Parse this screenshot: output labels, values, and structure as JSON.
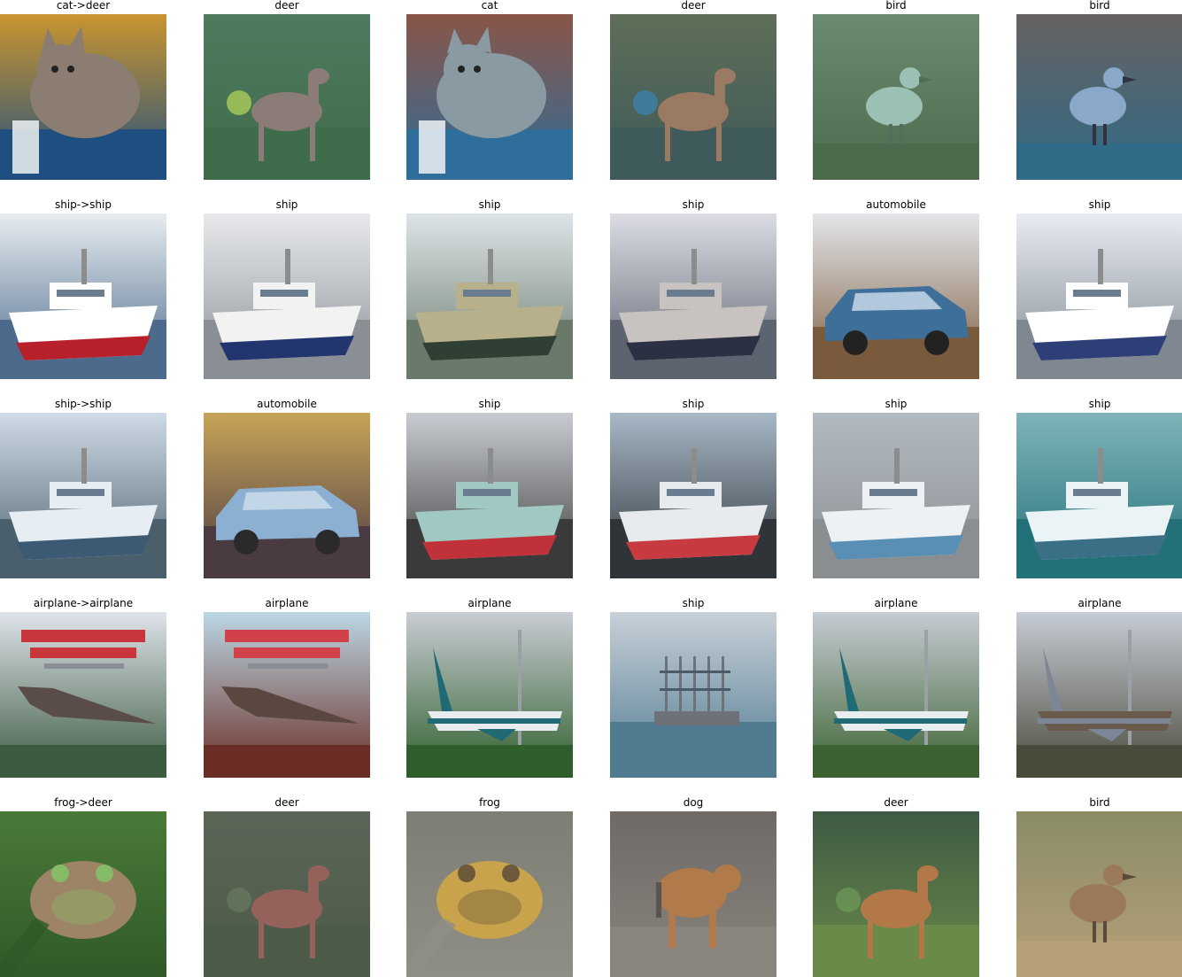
{
  "figure": {
    "rows": [
      {
        "cells": [
          {
            "title": "cat->deer",
            "subject": "cat",
            "colors": {
              "bg": "#c9952f",
              "fg": "#8c7d72",
              "accent": "#2f6fa8",
              "floor": "#1f4f80"
            }
          },
          {
            "title": "deer",
            "subject": "deer",
            "colors": {
              "bg": "#4f7a5e",
              "fg": "#8b7c78",
              "accent": "#b8d85a",
              "floor": "#3f6c4a"
            }
          },
          {
            "title": "cat",
            "subject": "cat",
            "colors": {
              "bg": "#8a5547",
              "fg": "#8a9aa2",
              "accent": "#3d7fae",
              "floor": "#2f6e9a"
            }
          },
          {
            "title": "deer",
            "subject": "deer",
            "colors": {
              "bg": "#5e6e58",
              "fg": "#9a7a63",
              "accent": "#3a86b6",
              "floor": "#3f5a5a"
            }
          },
          {
            "title": "bird",
            "subject": "bird",
            "colors": {
              "bg": "#6c8a70",
              "fg": "#9cc0b4",
              "accent": "#4f6f58",
              "floor": "#4c6a4c"
            }
          },
          {
            "title": "bird",
            "subject": "bird",
            "colors": {
              "bg": "#676262",
              "fg": "#8aa8c8",
              "accent": "#2f3440",
              "floor": "#2f6a86"
            }
          }
        ]
      },
      {
        "cells": [
          {
            "title": "ship->ship",
            "subject": "ship",
            "colors": {
              "bg": "#e7ecef",
              "fg": "#ffffff",
              "accent": "#b8202c",
              "floor": "#4b6a8c"
            }
          },
          {
            "title": "ship",
            "subject": "ship",
            "colors": {
              "bg": "#e8eaed",
              "fg": "#f2f2f2",
              "accent": "#22356e",
              "floor": "#8a8f95"
            }
          },
          {
            "title": "ship",
            "subject": "ship",
            "colors": {
              "bg": "#dde4e8",
              "fg": "#b8b08a",
              "accent": "#2f3f33",
              "floor": "#6a7a6a"
            }
          },
          {
            "title": "ship",
            "subject": "ship",
            "colors": {
              "bg": "#dcdde4",
              "fg": "#c8c3c0",
              "accent": "#2b3043",
              "floor": "#5d6470"
            }
          },
          {
            "title": "automobile",
            "subject": "car",
            "colors": {
              "bg": "#e4e6ea",
              "fg": "#3d6f99",
              "accent": "#222222",
              "floor": "#7a5a3c"
            }
          },
          {
            "title": "ship",
            "subject": "ship",
            "colors": {
              "bg": "#e8ecf3",
              "fg": "#ffffff",
              "accent": "#2e3f78",
              "floor": "#7f8790"
            }
          }
        ]
      },
      {
        "cells": [
          {
            "title": "ship->ship",
            "subject": "ship",
            "colors": {
              "bg": "#cfdbe6",
              "fg": "#e6eef4",
              "accent": "#3d5a74",
              "floor": "#4a5f6c"
            }
          },
          {
            "title": "automobile",
            "subject": "car",
            "colors": {
              "bg": "#c8a458",
              "fg": "#8cb0d2",
              "accent": "#2a2a2a",
              "floor": "#4a3a42"
            }
          },
          {
            "title": "ship",
            "subject": "ship",
            "colors": {
              "bg": "#c8ccd2",
              "fg": "#9fc9c2",
              "accent": "#c1313a",
              "floor": "#3a3a3a"
            }
          },
          {
            "title": "ship",
            "subject": "ship",
            "colors": {
              "bg": "#a7b8c7",
              "fg": "#e7ebee",
              "accent": "#c73a40",
              "floor": "#2e3438"
            }
          },
          {
            "title": "ship",
            "subject": "ship",
            "colors": {
              "bg": "#b2bac2",
              "fg": "#eef1f4",
              "accent": "#5a8fb5",
              "floor": "#8a8e90"
            }
          },
          {
            "title": "ship",
            "subject": "ship",
            "colors": {
              "bg": "#7fb3b8",
              "fg": "#eaf3f5",
              "accent": "#3a6f86",
              "floor": "#237178"
            }
          }
        ]
      },
      {
        "cells": [
          {
            "title": "airplane->airplane",
            "subject": "poster",
            "colors": {
              "bg": "#dfe3ea",
              "fg": "#5a4c48",
              "accent": "#c8363c",
              "floor": "#3b5a40"
            }
          },
          {
            "title": "airplane",
            "subject": "poster",
            "colors": {
              "bg": "#bcd7e5",
              "fg": "#5a4840",
              "accent": "#d2404a",
              "floor": "#6a2e26"
            }
          },
          {
            "title": "airplane",
            "subject": "airplane",
            "colors": {
              "bg": "#c9cdd4",
              "fg": "#e8ecef",
              "accent": "#1f6a74",
              "floor": "#2f5e2c"
            }
          },
          {
            "title": "ship",
            "subject": "tallship",
            "colors": {
              "bg": "#c8d0d8",
              "fg": "#6d7278",
              "accent": "#4b5a66",
              "floor": "#4f7a90"
            }
          },
          {
            "title": "airplane",
            "subject": "airplane",
            "colors": {
              "bg": "#c6ccd3",
              "fg": "#e8edf0",
              "accent": "#1f6a74",
              "floor": "#3c6232"
            }
          },
          {
            "title": "airplane",
            "subject": "airplane",
            "colors": {
              "bg": "#c6ccd6",
              "fg": "#6a5a4c",
              "accent": "#7d8696",
              "floor": "#4a4a3a"
            }
          }
        ]
      },
      {
        "cells": [
          {
            "title": "frog->deer",
            "subject": "frog",
            "colors": {
              "bg": "#4a7a38",
              "fg": "#9d8467",
              "accent": "#86ba66",
              "floor": "#2f5a28"
            }
          },
          {
            "title": "deer",
            "subject": "deer",
            "colors": {
              "bg": "#5c6658",
              "fg": "#94625a",
              "accent": "#6a7a60",
              "floor": "#4c5a48"
            }
          },
          {
            "title": "frog",
            "subject": "frog",
            "colors": {
              "bg": "#7d7e74",
              "fg": "#c9a24c",
              "accent": "#6c5a3a",
              "floor": "#8e8e84"
            }
          },
          {
            "title": "dog",
            "subject": "dog",
            "colors": {
              "bg": "#6f6a66",
              "fg": "#b07a4a",
              "accent": "#5a5450",
              "floor": "#8a847e"
            }
          },
          {
            "title": "deer",
            "subject": "deer",
            "colors": {
              "bg": "#3f5a44",
              "fg": "#b27848",
              "accent": "#6f9a5a",
              "floor": "#6a8a4a"
            }
          },
          {
            "title": "bird",
            "subject": "bird",
            "colors": {
              "bg": "#8a8c66",
              "fg": "#9a7a58",
              "accent": "#5a4a3a",
              "floor": "#b6a07a"
            }
          }
        ]
      }
    ]
  }
}
